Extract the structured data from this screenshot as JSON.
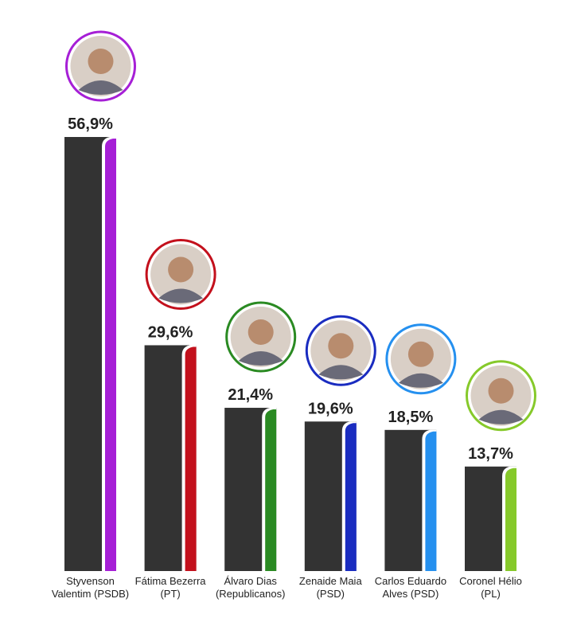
{
  "chart_data": {
    "type": "bar",
    "categories": [
      "Styvenson Valentim (PSDB)",
      "Fátima Bezerra (PT)",
      "Álvaro Dias (Republicanos)",
      "Zenaide Maia (PSD)",
      "Carlos Eduardo Alves (PSD)",
      "Coronel Hélio (PL)"
    ],
    "values": [
      56.9,
      29.6,
      21.4,
      19.6,
      18.5,
      13.7
    ],
    "value_labels": [
      "56,9%",
      "29,6%",
      "21,4%",
      "19,6%",
      "18,5%",
      "13,7%"
    ],
    "colors": [
      "#a61fd6",
      "#c3101c",
      "#2a8a22",
      "#1a2cc0",
      "#2590ef",
      "#86c92a"
    ]
  }
}
